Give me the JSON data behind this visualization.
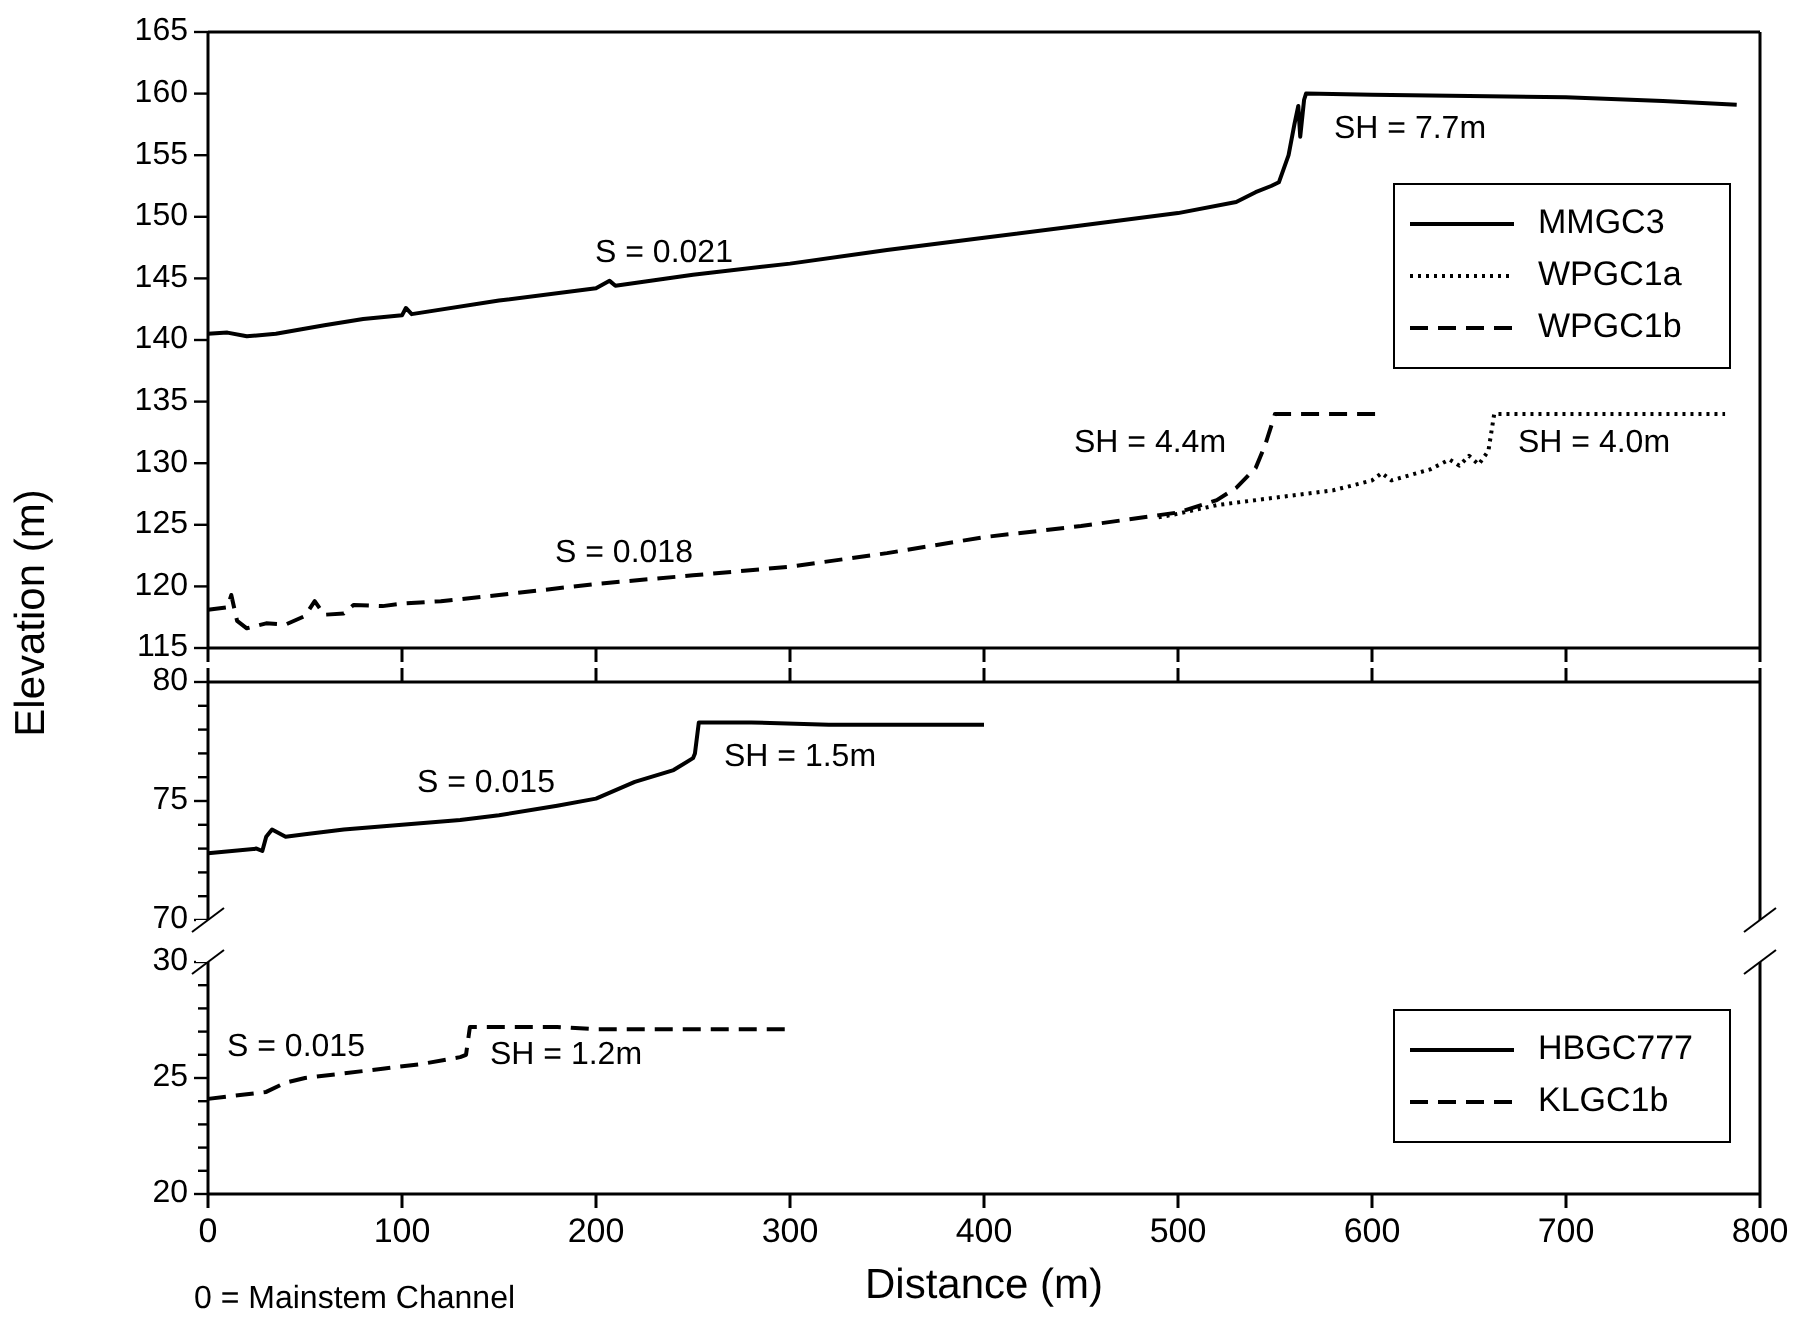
{
  "chart_data": [
    {
      "type": "line",
      "xlim": [
        0,
        800
      ],
      "xticks": [
        0,
        100,
        200,
        300,
        400,
        500,
        600,
        700,
        800
      ],
      "ylim": [
        115,
        165
      ],
      "yticks": [
        115,
        120,
        125,
        130,
        135,
        140,
        145,
        150,
        155,
        160,
        165
      ],
      "tick_labels": "y",
      "legend": "top right",
      "series": [
        {
          "name": "MMGC3",
          "color": "#000000",
          "line_style": "solid",
          "x": [
            0,
            10,
            20,
            35,
            60,
            80,
            100,
            102,
            105,
            150,
            200,
            207,
            210,
            250,
            300,
            350,
            400,
            450,
            500,
            530,
            540,
            548,
            552,
            557,
            560,
            562,
            563,
            565,
            566,
            600,
            650,
            700,
            750,
            788
          ],
          "values": [
            140.5,
            140.6,
            140.3,
            140.5,
            141.2,
            141.7,
            142.0,
            142.6,
            142.1,
            143.2,
            144.2,
            144.8,
            144.4,
            145.3,
            146.2,
            147.3,
            148.3,
            149.3,
            150.3,
            151.2,
            152.0,
            152.5,
            152.8,
            155.0,
            157.5,
            159.0,
            156.5,
            159.5,
            160.0,
            159.9,
            159.8,
            159.7,
            159.4,
            159.1
          ]
        },
        {
          "name": "WPGC1a",
          "color": "#000000",
          "line_style": "dotted",
          "x": [
            490,
            500,
            520,
            550,
            580,
            600,
            605,
            610,
            630,
            640,
            645,
            650,
            655,
            660,
            663,
            670,
            700,
            782
          ],
          "values": [
            125.6,
            125.9,
            126.6,
            127.2,
            127.8,
            128.6,
            129.2,
            128.6,
            129.5,
            130.3,
            129.8,
            130.6,
            129.9,
            131.0,
            134.0,
            134.0,
            134.0,
            134.0
          ]
        },
        {
          "name": "WPGC1b",
          "color": "#000000",
          "line_style": "dashed",
          "x": [
            0,
            10,
            12,
            15,
            20,
            30,
            40,
            50,
            55,
            60,
            70,
            75,
            90,
            100,
            120,
            150,
            200,
            250,
            300,
            350,
            400,
            450,
            500,
            520,
            530,
            540,
            545,
            550,
            560,
            602
          ],
          "values": [
            118.1,
            118.3,
            119.3,
            117.2,
            116.6,
            117.0,
            116.9,
            117.6,
            118.8,
            117.7,
            117.8,
            118.5,
            118.4,
            118.6,
            118.8,
            119.3,
            120.2,
            120.9,
            121.6,
            122.7,
            124.0,
            124.9,
            126.0,
            127.0,
            128.0,
            129.6,
            131.5,
            134.0,
            134.0,
            134.0
          ]
        }
      ],
      "annotations": [
        "S = 0.021",
        "SH = 7.7m",
        "S = 0.018",
        "SH = 4.4m",
        "SH = 4.0m"
      ]
    },
    {
      "type": "line",
      "xlim": [
        0,
        800
      ],
      "xticks": [
        0,
        100,
        200,
        300,
        400,
        500,
        600,
        700,
        800
      ],
      "ylim": [
        70,
        80
      ],
      "yticks": [
        70,
        {
          "value": 71,
          "label": null
        },
        {
          "value": 72,
          "label": null
        },
        {
          "value": 73,
          "label": null
        },
        {
          "value": 74,
          "label": null
        },
        75,
        {
          "value": 76,
          "label": null
        },
        {
          "value": 77,
          "label": null
        },
        {
          "value": 78,
          "label": null
        },
        {
          "value": 79,
          "label": null
        },
        80
      ],
      "tick_labels": "y",
      "ylabel": "Elevation (m)",
      "series": [
        {
          "name": "HBGC777",
          "color": "#000000",
          "line_style": "solid",
          "x": [
            0,
            25,
            28,
            30,
            33,
            40,
            50,
            70,
            100,
            130,
            150,
            180,
            200,
            220,
            240,
            250,
            251,
            253,
            280,
            320,
            400
          ],
          "values": [
            72.8,
            73.0,
            72.9,
            73.5,
            73.8,
            73.5,
            73.6,
            73.8,
            74.0,
            74.2,
            74.4,
            74.8,
            75.1,
            75.8,
            76.3,
            76.8,
            77.0,
            78.3,
            78.3,
            78.2,
            78.2
          ]
        }
      ],
      "annotations": [
        "S = 0.015",
        "SH = 1.5m"
      ]
    },
    {
      "type": "line",
      "xlim": [
        0,
        800
      ],
      "xticks": [
        0,
        100,
        200,
        300,
        400,
        500,
        600,
        700,
        800
      ],
      "ylim": [
        20,
        30
      ],
      "yticks": [
        20,
        {
          "value": 21,
          "label": null
        },
        {
          "value": 22,
          "label": null
        },
        {
          "value": 23,
          "label": null
        },
        {
          "value": 24,
          "label": null
        },
        25,
        {
          "value": 26,
          "label": null
        },
        {
          "value": 27,
          "label": null
        },
        {
          "value": 28,
          "label": null
        },
        {
          "value": 29,
          "label": null
        },
        30
      ],
      "xlabel": "Distance (m)",
      "legend": "bottom right",
      "series": [
        {
          "name": "KLGC1b",
          "color": "#000000",
          "line_style": "dashed",
          "x": [
            0,
            10,
            20,
            30,
            40,
            50,
            70,
            90,
            110,
            130,
            133,
            135,
            140,
            180,
            200,
            300
          ],
          "values": [
            24.1,
            24.2,
            24.3,
            24.4,
            24.8,
            25.0,
            25.2,
            25.4,
            25.6,
            25.9,
            26.0,
            27.2,
            27.2,
            27.2,
            27.1,
            27.1
          ]
        }
      ],
      "annotations": [
        "S = 0.015",
        "SH = 1.2m",
        "0 = Mainstem Channel"
      ]
    }
  ]
}
